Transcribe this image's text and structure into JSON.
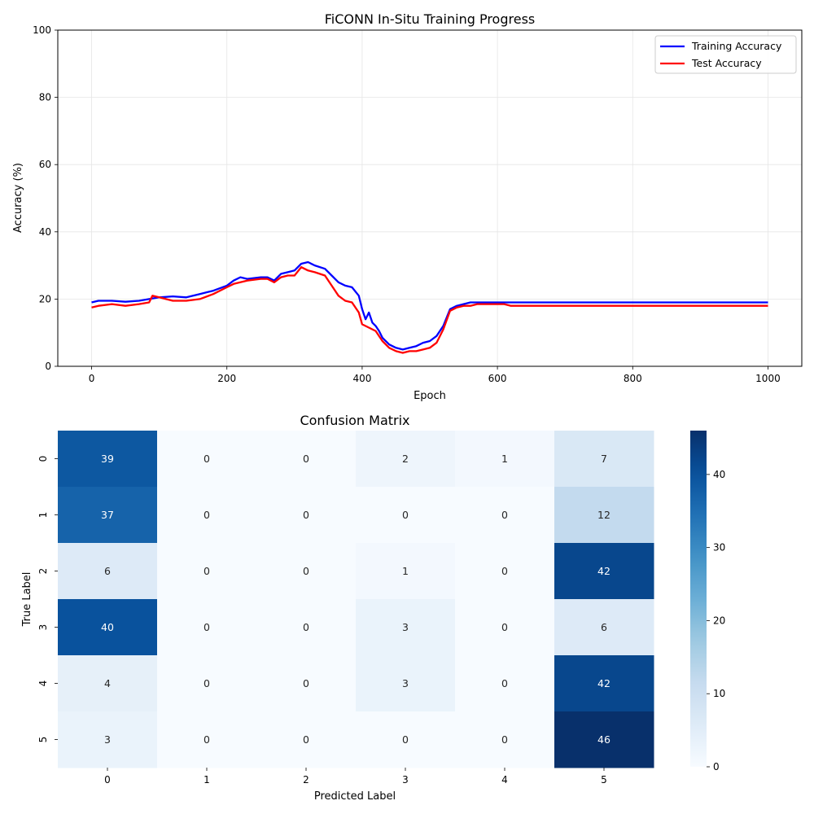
{
  "chart_data": [
    {
      "type": "line",
      "title": "FiCONN In-Situ Training Progress",
      "xlabel": "Epoch",
      "ylabel": "Accuracy (%)",
      "xlim": [
        -50,
        1050
      ],
      "ylim": [
        0,
        100
      ],
      "xticks": [
        0,
        200,
        400,
        600,
        800,
        1000
      ],
      "yticks": [
        0,
        20,
        40,
        60,
        80,
        100
      ],
      "grid": true,
      "legend_position": "top-right",
      "series": [
        {
          "name": "Training Accuracy",
          "color": "#0000ff",
          "points": [
            [
              0,
              19.0
            ],
            [
              10,
              19.5
            ],
            [
              30,
              19.5
            ],
            [
              50,
              19.2
            ],
            [
              70,
              19.5
            ],
            [
              85,
              20.0
            ],
            [
              100,
              20.5
            ],
            [
              120,
              20.8
            ],
            [
              140,
              20.5
            ],
            [
              160,
              21.5
            ],
            [
              180,
              22.5
            ],
            [
              200,
              24.0
            ],
            [
              210,
              25.5
            ],
            [
              220,
              26.5
            ],
            [
              230,
              26.0
            ],
            [
              250,
              26.5
            ],
            [
              260,
              26.5
            ],
            [
              270,
              25.5
            ],
            [
              280,
              27.5
            ],
            [
              290,
              28.0
            ],
            [
              300,
              28.5
            ],
            [
              310,
              30.5
            ],
            [
              320,
              31.0
            ],
            [
              330,
              30.0
            ],
            [
              345,
              29.0
            ],
            [
              355,
              27.0
            ],
            [
              365,
              25.0
            ],
            [
              375,
              24.0
            ],
            [
              385,
              23.5
            ],
            [
              395,
              21.0
            ],
            [
              400,
              17.0
            ],
            [
              405,
              14.0
            ],
            [
              410,
              16.0
            ],
            [
              415,
              13.0
            ],
            [
              420,
              12.0
            ],
            [
              425,
              10.5
            ],
            [
              430,
              8.5
            ],
            [
              440,
              6.5
            ],
            [
              450,
              5.5
            ],
            [
              460,
              5.0
            ],
            [
              470,
              5.5
            ],
            [
              480,
              6.0
            ],
            [
              490,
              7.0
            ],
            [
              500,
              7.5
            ],
            [
              510,
              9.0
            ],
            [
              520,
              12.0
            ],
            [
              530,
              17.0
            ],
            [
              540,
              18.0
            ],
            [
              550,
              18.5
            ],
            [
              560,
              19.0
            ],
            [
              570,
              19.0
            ],
            [
              600,
              19.0
            ],
            [
              700,
              19.0
            ],
            [
              800,
              19.0
            ],
            [
              900,
              19.0
            ],
            [
              1000,
              19.0
            ]
          ]
        },
        {
          "name": "Test Accuracy",
          "color": "#ff0000",
          "points": [
            [
              0,
              17.5
            ],
            [
              10,
              18.0
            ],
            [
              30,
              18.5
            ],
            [
              50,
              18.0
            ],
            [
              70,
              18.5
            ],
            [
              85,
              19.0
            ],
            [
              90,
              21.0
            ],
            [
              100,
              20.5
            ],
            [
              120,
              19.5
            ],
            [
              140,
              19.5
            ],
            [
              160,
              20.0
            ],
            [
              180,
              21.5
            ],
            [
              200,
              23.5
            ],
            [
              210,
              24.5
            ],
            [
              220,
              25.0
            ],
            [
              230,
              25.5
            ],
            [
              250,
              26.0
            ],
            [
              260,
              26.0
            ],
            [
              270,
              25.0
            ],
            [
              280,
              26.5
            ],
            [
              290,
              27.0
            ],
            [
              300,
              27.0
            ],
            [
              310,
              29.5
            ],
            [
              320,
              28.5
            ],
            [
              330,
              28.0
            ],
            [
              345,
              27.0
            ],
            [
              355,
              24.0
            ],
            [
              365,
              21.0
            ],
            [
              375,
              19.5
            ],
            [
              385,
              19.0
            ],
            [
              395,
              16.0
            ],
            [
              400,
              12.5
            ],
            [
              410,
              11.5
            ],
            [
              420,
              10.5
            ],
            [
              430,
              7.5
            ],
            [
              440,
              5.5
            ],
            [
              450,
              4.5
            ],
            [
              460,
              4.0
            ],
            [
              470,
              4.5
            ],
            [
              480,
              4.5
            ],
            [
              490,
              5.0
            ],
            [
              500,
              5.5
            ],
            [
              510,
              7.0
            ],
            [
              520,
              11.0
            ],
            [
              530,
              16.5
            ],
            [
              540,
              17.5
            ],
            [
              550,
              18.0
            ],
            [
              560,
              18.0
            ],
            [
              570,
              18.5
            ],
            [
              610,
              18.5
            ],
            [
              620,
              18.0
            ],
            [
              700,
              18.0
            ],
            [
              800,
              18.0
            ],
            [
              900,
              18.0
            ],
            [
              1000,
              18.0
            ]
          ]
        }
      ]
    },
    {
      "type": "heatmap",
      "title": "Confusion Matrix",
      "xlabel": "Predicted Label",
      "ylabel": "True Label",
      "x_categories": [
        "0",
        "1",
        "2",
        "3",
        "4",
        "5"
      ],
      "y_categories": [
        "0",
        "1",
        "2",
        "3",
        "4",
        "5"
      ],
      "values": [
        [
          39,
          0,
          0,
          2,
          1,
          7
        ],
        [
          37,
          0,
          0,
          0,
          0,
          12
        ],
        [
          6,
          0,
          0,
          1,
          0,
          42
        ],
        [
          40,
          0,
          0,
          3,
          0,
          6
        ],
        [
          4,
          0,
          0,
          3,
          0,
          42
        ],
        [
          3,
          0,
          0,
          0,
          0,
          46
        ]
      ],
      "colormap": "Blues",
      "vmin": 0,
      "vmax": 46,
      "colorbar_ticks": [
        0,
        10,
        20,
        30,
        40
      ]
    }
  ]
}
